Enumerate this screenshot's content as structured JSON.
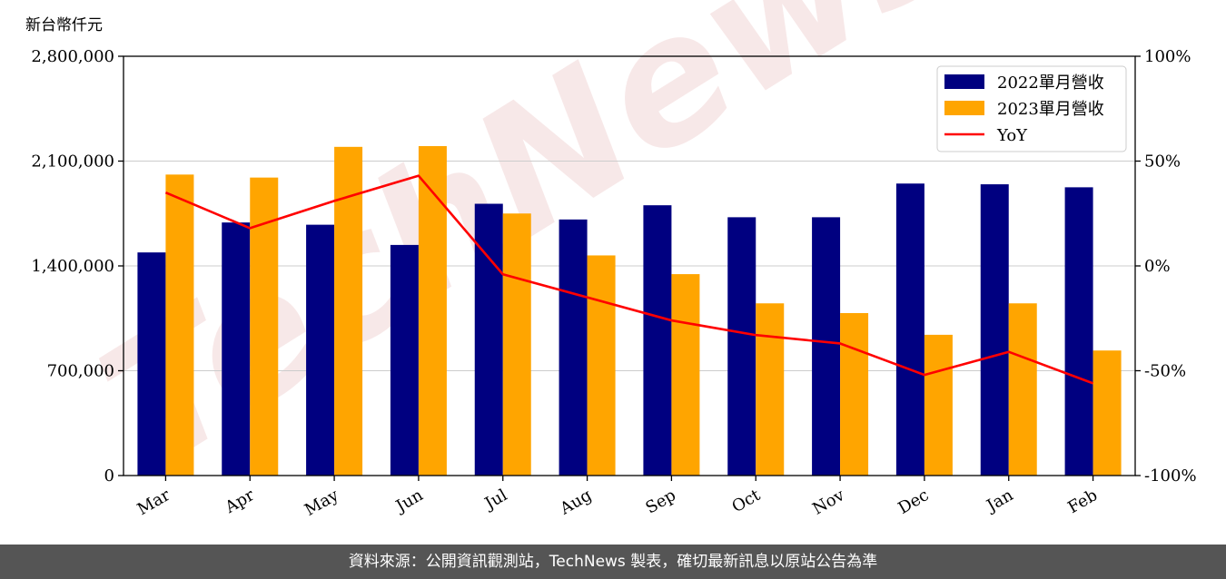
{
  "watermark": "TechNews",
  "footer_text": "資料來源：公開資訊觀測站，TechNews 製表，確切最新訊息以原站公告為準",
  "chart_data": {
    "type": "bar",
    "unit_label": "新台幣仟元",
    "categories": [
      "Mar",
      "Apr",
      "May",
      "Jun",
      "Jul",
      "Aug",
      "Sep",
      "Oct",
      "Nov",
      "Dec",
      "Jan",
      "Feb"
    ],
    "series": [
      {
        "name": "2022單月營收",
        "type": "bar",
        "color": "#000080",
        "values": [
          1490000,
          1690000,
          1675000,
          1540000,
          1815000,
          1710000,
          1805000,
          1725000,
          1725000,
          1950000,
          1945000,
          1925000
        ]
      },
      {
        "name": "2023單月營收",
        "type": "bar",
        "color": "#FFA500",
        "values": [
          2010000,
          1990000,
          2195000,
          2200000,
          1750000,
          1470000,
          1345000,
          1150000,
          1085000,
          940000,
          1150000,
          835000
        ]
      },
      {
        "name": "YoY",
        "type": "line",
        "axis": "right",
        "color": "#FF0000",
        "values": [
          35,
          18,
          31,
          43,
          -4,
          -15,
          -26,
          -33,
          -37,
          -52,
          -41,
          -56
        ]
      }
    ],
    "ylim": [
      0,
      2800000
    ],
    "yticks": [
      "0",
      "700,000",
      "1,400,000",
      "2,100,000",
      "2,800,000"
    ],
    "y2lim": [
      -100,
      100
    ],
    "y2ticks": [
      "-100%",
      "-50%",
      "0%",
      "50%",
      "100%"
    ],
    "grid": "horizontal",
    "legend_position": "top-right"
  }
}
